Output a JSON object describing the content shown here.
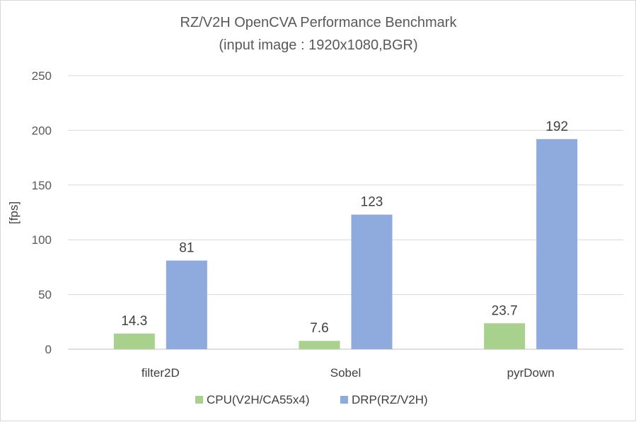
{
  "chart_data": {
    "type": "bar",
    "title": "RZ/V2H OpenCVA Performance Benchmark",
    "subtitle": "(input image : 1920x1080,BGR)",
    "xlabel": "",
    "ylabel": "[fps]",
    "ylim": [
      0,
      250
    ],
    "yticks": [
      0,
      50,
      100,
      150,
      200,
      250
    ],
    "grid": true,
    "legend_position": "bottom",
    "categories": [
      "filter2D",
      "Sobel",
      "pyrDown"
    ],
    "series": [
      {
        "name": "CPU(V2H/CA55x4)",
        "values": [
          14.3,
          7.6,
          23.7
        ],
        "labels": [
          "14.3",
          "7.6",
          "23.7"
        ],
        "color": "#a9d18e"
      },
      {
        "name": "DRP(RZ/V2H)",
        "values": [
          81,
          123,
          192
        ],
        "labels": [
          "81",
          "123",
          "192"
        ],
        "color": "#8faadc"
      }
    ]
  }
}
